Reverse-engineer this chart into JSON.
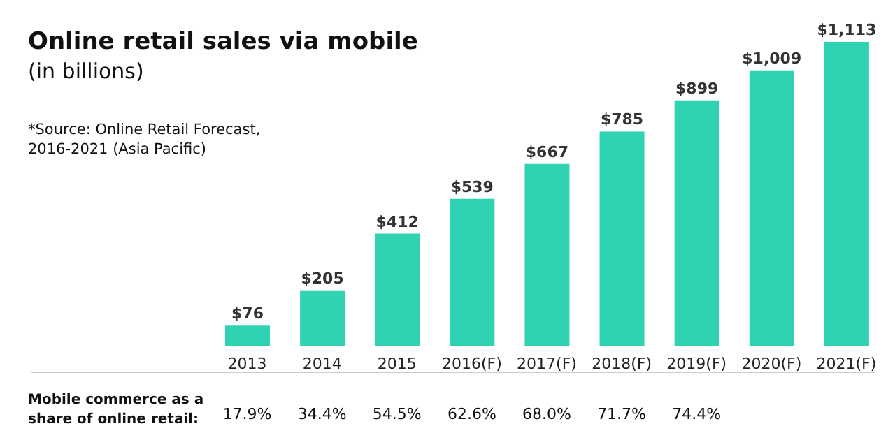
{
  "chart_data": {
    "type": "bar",
    "title": "Online retail sales via mobile",
    "subtitle": "(in billions)",
    "categories": [
      "2013",
      "2014",
      "2015",
      "2016(F)",
      "2017(F)",
      "2018(F)",
      "2019(F)",
      "2020(F)",
      "2021(F)"
    ],
    "values": [
      76,
      205,
      412,
      539,
      667,
      785,
      899,
      1009,
      1113
    ],
    "value_labels": [
      "$76",
      "$205",
      "$412",
      "$539",
      "$667",
      "$785",
      "$899",
      "$1,009",
      "$1,113"
    ],
    "color": "#2fd3b1",
    "grid": false,
    "legend": false,
    "tick_labels": "x",
    "annotations": [
      "*Source: Online Retail Forecast, 2016-2021 (Asia Pacific)",
      "Mobile commerce as a share of online retail:",
      "17.9%",
      "34.4%",
      "54.5%",
      "62.6%",
      "68.0%",
      "71.7%",
      "74.4%"
    ]
  }
}
